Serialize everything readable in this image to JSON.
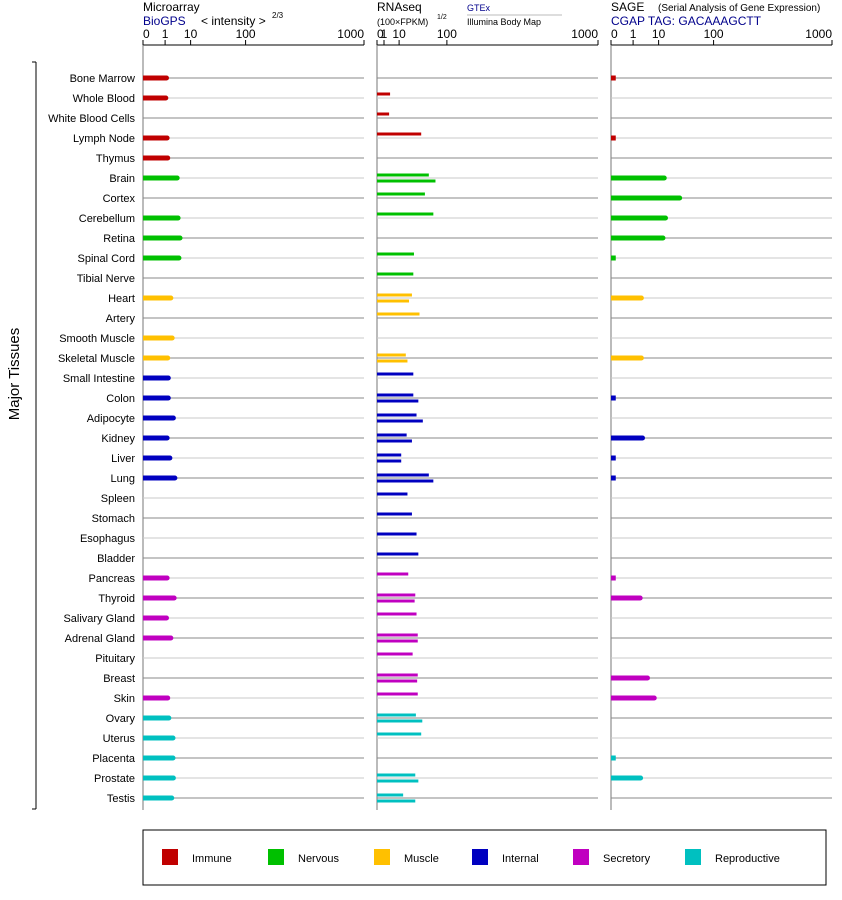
{
  "panels": {
    "microarray": {
      "title": "Microarray",
      "source": "BioGPS",
      "unit_label": "< intensity >",
      "unit_exponent": "2/3"
    },
    "rnaseq": {
      "title": "RNAseq",
      "unit_label": "(100×FPKM)",
      "unit_exponent": "1/2",
      "source_1": "GTEx",
      "source_2": "Illumina Body Map"
    },
    "sage": {
      "title": "SAGE",
      "subtitle": "(Serial Analysis of Gene Expression)",
      "source": "CGAP TAG: GACAAAGCTT"
    }
  },
  "axis_ticks": [
    "0",
    "1",
    "10",
    "100",
    "1000"
  ],
  "group_label": "Major Tissues",
  "colors": {
    "Immune": "#c00000",
    "Nervous": "#00c000",
    "Muscle": "#ffc000",
    "Internal": "#0000c0",
    "Secretory": "#c000c0",
    "Reproductive": "#00c0c0"
  },
  "legend": [
    "Immune",
    "Nervous",
    "Muscle",
    "Internal",
    "Secretory",
    "Reproductive"
  ],
  "chart_data": {
    "type": "bar",
    "orientation": "horizontal",
    "x_scale": "power-root",
    "xlim": [
      0,
      1000
    ],
    "tissues": [
      {
        "name": "Bone Marrow",
        "category": "Immune",
        "microarray": 1.2,
        "rnaseq": [],
        "sage": 0.01
      },
      {
        "name": "Whole Blood",
        "category": "Immune",
        "microarray": 1.1,
        "rnaseq": [
          3.5
        ],
        "sage": null
      },
      {
        "name": "White Blood Cells",
        "category": "Immune",
        "microarray": null,
        "rnaseq": [
          3
        ],
        "sage": null
      },
      {
        "name": "Lymph Node",
        "category": "Immune",
        "microarray": 1.3,
        "rnaseq": [
          40
        ],
        "sage": 0.01
      },
      {
        "name": "Thymus",
        "category": "Immune",
        "microarray": 1.4,
        "rnaseq": [],
        "sage": null
      },
      {
        "name": "Brain",
        "category": "Nervous",
        "microarray": 3.7,
        "rnaseq": [
          55,
          70
        ],
        "sage": 14
      },
      {
        "name": "Cortex",
        "category": "Nervous",
        "microarray": null,
        "rnaseq": [
          47
        ],
        "sage": 30
      },
      {
        "name": "Cerebellum",
        "category": "Nervous",
        "microarray": 4,
        "rnaseq": [
          65
        ],
        "sage": 15
      },
      {
        "name": "Retina",
        "category": "Nervous",
        "microarray": 4.7,
        "rnaseq": [],
        "sage": 13
      },
      {
        "name": "Spinal Cord",
        "category": "Nervous",
        "microarray": 4.3,
        "rnaseq": [
          28
        ],
        "sage": 0.01
      },
      {
        "name": "Tibial Nerve",
        "category": "Nervous",
        "microarray": null,
        "rnaseq": [
          27
        ],
        "sage": null
      },
      {
        "name": "Heart",
        "category": "Muscle",
        "microarray": 2,
        "rnaseq": [
          25,
          21
        ],
        "sage": 2.6
      },
      {
        "name": "Artery",
        "category": "Muscle",
        "microarray": null,
        "rnaseq": [
          37
        ],
        "sage": null
      },
      {
        "name": "Smooth Muscle",
        "category": "Muscle",
        "microarray": 2.3,
        "rnaseq": [],
        "sage": null
      },
      {
        "name": "Skeletal Muscle",
        "category": "Muscle",
        "microarray": 1.4,
        "rnaseq": [
          17,
          19
        ],
        "sage": 2.6
      },
      {
        "name": "Small Intestine",
        "category": "Internal",
        "microarray": 1.5,
        "rnaseq": [
          27
        ],
        "sage": null
      },
      {
        "name": "Colon",
        "category": "Internal",
        "microarray": 1.5,
        "rnaseq": [
          27,
          35
        ],
        "sage": 0.01
      },
      {
        "name": "Adipocyte",
        "category": "Internal",
        "microarray": 2.6,
        "rnaseq": [
          32,
          43
        ],
        "sage": null
      },
      {
        "name": "Kidney",
        "category": "Internal",
        "microarray": 1.3,
        "rnaseq": [
          18,
          25
        ],
        "sage": 2.9
      },
      {
        "name": "Liver",
        "category": "Internal",
        "microarray": 1.8,
        "rnaseq": [
          12,
          12
        ],
        "sage": 0.01
      },
      {
        "name": "Lung",
        "category": "Internal",
        "microarray": 3,
        "rnaseq": [
          55,
          65
        ],
        "sage": 0.01
      },
      {
        "name": "Spleen",
        "category": "Internal",
        "microarray": null,
        "rnaseq": [
          19
        ],
        "sage": null
      },
      {
        "name": "Stomach",
        "category": "Internal",
        "microarray": null,
        "rnaseq": [
          25
        ],
        "sage": null
      },
      {
        "name": "Esophagus",
        "category": "Internal",
        "microarray": null,
        "rnaseq": [
          32
        ],
        "sage": null
      },
      {
        "name": "Bladder",
        "category": "Internal",
        "microarray": null,
        "rnaseq": [
          35
        ],
        "sage": null
      },
      {
        "name": "Pancreas",
        "category": "Secretory",
        "microarray": 1.3,
        "rnaseq": [
          20
        ],
        "sage": 0.01
      },
      {
        "name": "Thyroid",
        "category": "Secretory",
        "microarray": 2.8,
        "rnaseq": [
          30,
          29
        ],
        "sage": 2.3
      },
      {
        "name": "Salivary Gland",
        "category": "Secretory",
        "microarray": 1.2,
        "rnaseq": [
          32
        ],
        "sage": null
      },
      {
        "name": "Adrenal Gland",
        "category": "Secretory",
        "microarray": 2,
        "rnaseq": [
          34,
          34
        ],
        "sage": null
      },
      {
        "name": "Pituitary",
        "category": "Secretory",
        "microarray": null,
        "rnaseq": [
          26
        ],
        "sage": null
      },
      {
        "name": "Breast",
        "category": "Secretory",
        "microarray": null,
        "rnaseq": [
          34,
          33
        ],
        "sage": 4.5
      },
      {
        "name": "Skin",
        "category": "Secretory",
        "microarray": 1.4,
        "rnaseq": [
          34
        ],
        "sage": 7.5
      },
      {
        "name": "Ovary",
        "category": "Reproductive",
        "microarray": 1.6,
        "rnaseq": [
          31,
          42
        ],
        "sage": null
      },
      {
        "name": "Uterus",
        "category": "Reproductive",
        "microarray": 2.5,
        "rnaseq": [
          40
        ],
        "sage": null
      },
      {
        "name": "Placenta",
        "category": "Reproductive",
        "microarray": 2.5,
        "rnaseq": [],
        "sage": 0.01
      },
      {
        "name": "Prostate",
        "category": "Reproductive",
        "microarray": 2.6,
        "rnaseq": [
          30,
          35
        ],
        "sage": 2.4
      },
      {
        "name": "Testis",
        "category": "Reproductive",
        "microarray": 2.2,
        "rnaseq": [
          14,
          30
        ],
        "sage": null
      }
    ]
  }
}
